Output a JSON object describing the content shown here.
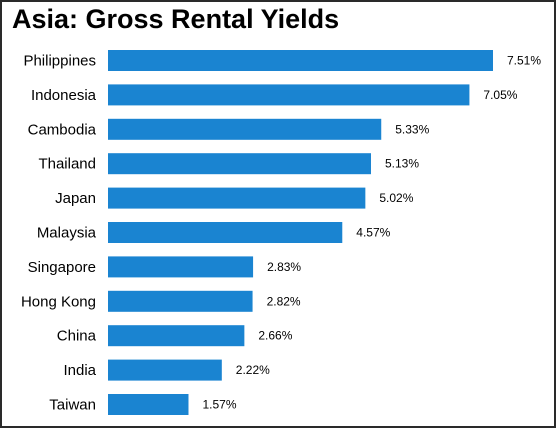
{
  "chart_data": {
    "type": "bar",
    "orientation": "horizontal",
    "title": "Asia: Gross Rental Yields",
    "categories": [
      "Philippines",
      "Indonesia",
      "Cambodia",
      "Thailand",
      "Japan",
      "Malaysia",
      "Singapore",
      "Hong Kong",
      "China",
      "India",
      "Taiwan"
    ],
    "values": [
      7.51,
      7.05,
      5.33,
      5.13,
      5.02,
      4.57,
      2.83,
      2.82,
      2.66,
      2.22,
      1.57
    ],
    "value_labels": [
      "7.51%",
      "7.05%",
      "5.33%",
      "5.13%",
      "5.02%",
      "4.57%",
      "2.83%",
      "2.82%",
      "2.66%",
      "2.22%",
      "1.57%"
    ],
    "unit": "%",
    "bar_color": "#1a84d1",
    "xlim": [
      0,
      7.51
    ],
    "grid": false,
    "legend": "none"
  }
}
